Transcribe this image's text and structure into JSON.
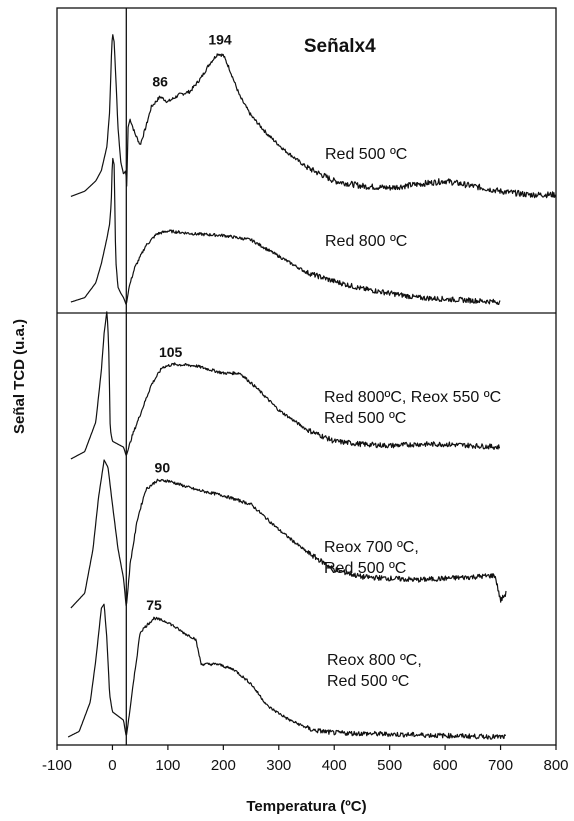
{
  "chart_data": {
    "type": "line",
    "xlabel": "Temperatura (ºC)",
    "ylabel": "Señal TCD (u.a.)",
    "xlim": [
      -100,
      800
    ],
    "xticks": [
      -100,
      0,
      100,
      200,
      300,
      400,
      500,
      600,
      700,
      800
    ],
    "xtick_labels": [
      "-100",
      "0",
      "100",
      "200",
      "300",
      "400",
      "500",
      "600",
      "700",
      "800"
    ],
    "grid": false,
    "legend": "none",
    "vertical_line_x": 25,
    "horizontal_divider": true,
    "annotations": [
      {
        "text": "Señalx4",
        "x": 410,
        "panel": "top"
      }
    ],
    "series": [
      {
        "name": "Red 500 ºC",
        "label_lines": [
          "Red 500 ºC"
        ],
        "panel": "top",
        "peak_labels": [
          {
            "text": "86",
            "x": 86
          },
          {
            "text": "194",
            "x": 194
          }
        ],
        "points": [
          [
            -75,
            0.05
          ],
          [
            -50,
            0.08
          ],
          [
            -30,
            0.14
          ],
          [
            -20,
            0.2
          ],
          [
            -10,
            0.34
          ],
          [
            -5,
            0.55
          ],
          [
            -2,
            0.85
          ],
          [
            0,
            1.0
          ],
          [
            3,
            0.95
          ],
          [
            6,
            0.75
          ],
          [
            10,
            0.45
          ],
          [
            15,
            0.25
          ],
          [
            20,
            0.18
          ],
          [
            24,
            0.2
          ],
          [
            26,
            0.1
          ],
          [
            28,
            0.45
          ],
          [
            32,
            0.5
          ],
          [
            40,
            0.42
          ],
          [
            50,
            0.35
          ],
          [
            60,
            0.45
          ],
          [
            70,
            0.57
          ],
          [
            86,
            0.63
          ],
          [
            100,
            0.6
          ],
          [
            120,
            0.64
          ],
          [
            140,
            0.66
          ],
          [
            160,
            0.74
          ],
          [
            175,
            0.82
          ],
          [
            190,
            0.88
          ],
          [
            200,
            0.87
          ],
          [
            210,
            0.8
          ],
          [
            230,
            0.63
          ],
          [
            250,
            0.52
          ],
          [
            280,
            0.41
          ],
          [
            310,
            0.32
          ],
          [
            350,
            0.22
          ],
          [
            400,
            0.14
          ],
          [
            450,
            0.11
          ],
          [
            500,
            0.1
          ],
          [
            550,
            0.12
          ],
          [
            600,
            0.14
          ],
          [
            650,
            0.11
          ],
          [
            700,
            0.08
          ],
          [
            750,
            0.06
          ],
          [
            800,
            0.06
          ]
        ]
      },
      {
        "name": "Red 800 ºC",
        "label_lines": [
          "Red 800 ºC"
        ],
        "panel": "top",
        "peak_labels": [],
        "points": [
          [
            -75,
            0.02
          ],
          [
            -50,
            0.05
          ],
          [
            -30,
            0.15
          ],
          [
            -20,
            0.28
          ],
          [
            -10,
            0.45
          ],
          [
            -5,
            0.55
          ],
          [
            -2,
            0.7
          ],
          [
            0,
            1.0
          ],
          [
            3,
            0.95
          ],
          [
            6,
            0.3
          ],
          [
            10,
            0.12
          ],
          [
            15,
            0.08
          ],
          [
            20,
            0.05
          ],
          [
            25,
            0.0
          ],
          [
            30,
            0.12
          ],
          [
            40,
            0.25
          ],
          [
            60,
            0.4
          ],
          [
            80,
            0.48
          ],
          [
            100,
            0.5
          ],
          [
            150,
            0.48
          ],
          [
            200,
            0.47
          ],
          [
            250,
            0.44
          ],
          [
            300,
            0.33
          ],
          [
            350,
            0.22
          ],
          [
            400,
            0.16
          ],
          [
            450,
            0.11
          ],
          [
            500,
            0.08
          ],
          [
            550,
            0.05
          ],
          [
            600,
            0.04
          ],
          [
            650,
            0.03
          ],
          [
            700,
            0.02
          ]
        ]
      },
      {
        "name": "Red 800ºC, Reox 550 ºC, Red 500 ºC",
        "label_lines": [
          "Red 800ºC, Reox 550 ºC",
          "Red 500 ºC"
        ],
        "panel": "bottom",
        "peak_labels": [
          {
            "text": "105",
            "x": 105
          }
        ],
        "points": [
          [
            -75,
            0.0
          ],
          [
            -50,
            0.05
          ],
          [
            -30,
            0.25
          ],
          [
            -20,
            0.6
          ],
          [
            -15,
            0.85
          ],
          [
            -10,
            1.0
          ],
          [
            -7,
            0.8
          ],
          [
            -4,
            0.2
          ],
          [
            0,
            0.12
          ],
          [
            10,
            0.1
          ],
          [
            20,
            0.08
          ],
          [
            25,
            0.02
          ],
          [
            35,
            0.15
          ],
          [
            50,
            0.3
          ],
          [
            70,
            0.5
          ],
          [
            90,
            0.62
          ],
          [
            110,
            0.64
          ],
          [
            150,
            0.63
          ],
          [
            200,
            0.58
          ],
          [
            230,
            0.58
          ],
          [
            260,
            0.48
          ],
          [
            300,
            0.33
          ],
          [
            350,
            0.2
          ],
          [
            400,
            0.12
          ],
          [
            450,
            0.1
          ],
          [
            500,
            0.09
          ],
          [
            550,
            0.1
          ],
          [
            600,
            0.1
          ],
          [
            650,
            0.09
          ],
          [
            700,
            0.08
          ]
        ]
      },
      {
        "name": "Reox 700 ºC, Red 500 ºC",
        "label_lines": [
          "Reox 700 ºC,",
          "Red 500 ºC"
        ],
        "panel": "bottom",
        "peak_labels": [
          {
            "text": "90",
            "x": 90
          }
        ],
        "points": [
          [
            -75,
            0.0
          ],
          [
            -50,
            0.1
          ],
          [
            -35,
            0.4
          ],
          [
            -25,
            0.75
          ],
          [
            -15,
            1.0
          ],
          [
            -8,
            0.95
          ],
          [
            0,
            0.7
          ],
          [
            10,
            0.4
          ],
          [
            20,
            0.2
          ],
          [
            25,
            0.0
          ],
          [
            32,
            0.3
          ],
          [
            45,
            0.6
          ],
          [
            60,
            0.8
          ],
          [
            80,
            0.86
          ],
          [
            100,
            0.86
          ],
          [
            150,
            0.8
          ],
          [
            200,
            0.76
          ],
          [
            250,
            0.7
          ],
          [
            300,
            0.53
          ],
          [
            350,
            0.38
          ],
          [
            400,
            0.26
          ],
          [
            450,
            0.21
          ],
          [
            500,
            0.2
          ],
          [
            550,
            0.19
          ],
          [
            600,
            0.2
          ],
          [
            650,
            0.21
          ],
          [
            690,
            0.22
          ],
          [
            700,
            0.05
          ],
          [
            710,
            0.1
          ]
        ]
      },
      {
        "name": "Reox 800 ºC, Red 500 ºC",
        "label_lines": [
          "Reox 800 ºC,",
          "Red 500 ºC"
        ],
        "panel": "bottom",
        "peak_labels": [
          {
            "text": "75",
            "x": 75
          }
        ],
        "points": [
          [
            -80,
            0.0
          ],
          [
            -60,
            0.04
          ],
          [
            -40,
            0.25
          ],
          [
            -30,
            0.55
          ],
          [
            -20,
            0.92
          ],
          [
            -15,
            0.95
          ],
          [
            -10,
            0.7
          ],
          [
            -5,
            0.3
          ],
          [
            0,
            0.18
          ],
          [
            10,
            0.15
          ],
          [
            20,
            0.12
          ],
          [
            25,
            0.0
          ],
          [
            35,
            0.3
          ],
          [
            50,
            0.75
          ],
          [
            75,
            0.85
          ],
          [
            100,
            0.82
          ],
          [
            130,
            0.74
          ],
          [
            150,
            0.7
          ],
          [
            160,
            0.52
          ],
          [
            190,
            0.52
          ],
          [
            220,
            0.48
          ],
          [
            250,
            0.38
          ],
          [
            280,
            0.22
          ],
          [
            320,
            0.12
          ],
          [
            360,
            0.05
          ],
          [
            400,
            0.03
          ],
          [
            500,
            0.02
          ],
          [
            600,
            0.01
          ],
          [
            700,
            0.0
          ],
          [
            710,
            0.0
          ]
        ]
      }
    ]
  }
}
